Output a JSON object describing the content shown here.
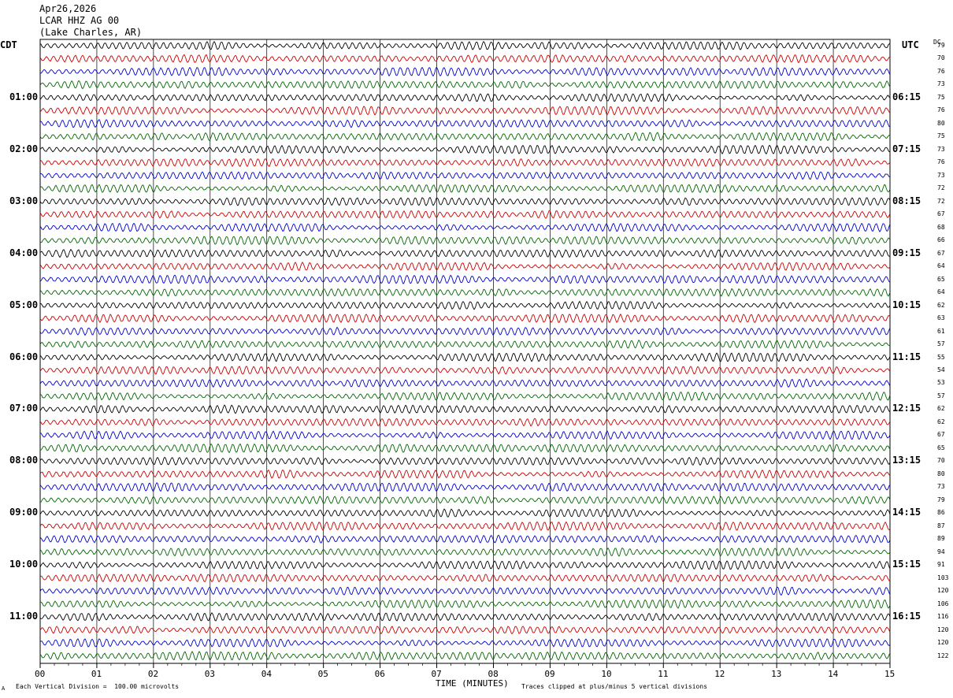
{
  "header": {
    "date": "Apr26,2026",
    "station": "LCAR HHZ AG 00",
    "location": "(Lake Charles, AR)"
  },
  "left_tz": "CDT",
  "right_tz": "UTC",
  "dc_label": "DC",
  "footer": {
    "xlabel": "TIME (MINUTES)",
    "scale_note": "Each Vertical Division =  100.00 microvolts",
    "clip_note": "Traces clipped at plus/minus 5 vertical divisions",
    "corner_mark": "A"
  },
  "chart_data": {
    "type": "line",
    "title": "LCAR HHZ AG 00",
    "xlabel": "TIME (MINUTES)",
    "ylabel": "",
    "x_ticks": [
      "00",
      "01",
      "02",
      "03",
      "04",
      "05",
      "06",
      "07",
      "08",
      "09",
      "10",
      "11",
      "12",
      "13",
      "14",
      "15"
    ],
    "xlim": [
      0,
      15
    ],
    "grid": true,
    "trace_colors": [
      "#000000",
      "#cc0000",
      "#0000cc",
      "#006600"
    ],
    "trace_count": 48,
    "minutes_per_trace": 15,
    "left_hour_labels": [
      "01:00",
      "02:00",
      "03:00",
      "04:00",
      "05:00",
      "06:00",
      "07:00",
      "08:00",
      "09:00",
      "10:00",
      "11:00"
    ],
    "right_hour_labels": [
      "06:15",
      "07:15",
      "08:15",
      "09:15",
      "10:15",
      "11:15",
      "12:15",
      "13:15",
      "14:15",
      "15:15",
      "16:15"
    ],
    "dc_offsets": [
      "79",
      "70",
      "76",
      "73",
      "75",
      "76",
      "80",
      "75",
      "73",
      "76",
      "73",
      "72",
      "72",
      "67",
      "68",
      "66",
      "67",
      "64",
      "65",
      "64",
      "62",
      "63",
      "61",
      "57",
      "55",
      "54",
      "53",
      "57",
      "62",
      "62",
      "67",
      "65",
      "70",
      "80",
      "73",
      "79",
      "86",
      "87",
      "89",
      "94",
      "91",
      "103",
      "120",
      "106",
      "116",
      "120",
      "120",
      "122"
    ]
  }
}
